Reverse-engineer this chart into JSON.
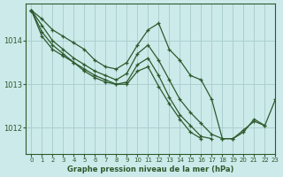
{
  "title": "Graphe pression niveau de la mer (hPa)",
  "background_color": "#cceaea",
  "grid_color": "#aacfcf",
  "line_color": "#2d5a2d",
  "marker_color": "#2d5a2d",
  "xlim": [
    -0.5,
    23
  ],
  "ylim": [
    1011.4,
    1014.85
  ],
  "yticks": [
    1012,
    1013,
    1014
  ],
  "xticks": [
    0,
    1,
    2,
    3,
    4,
    5,
    6,
    7,
    8,
    9,
    10,
    11,
    12,
    13,
    14,
    15,
    16,
    17,
    18,
    19,
    20,
    21,
    22,
    23
  ],
  "lines": [
    {
      "y": [
        1014.7,
        1014.5,
        1014.25,
        1014.1,
        1013.95,
        1013.8,
        1013.55,
        1013.4,
        1013.35,
        1013.5,
        1013.9,
        1014.25,
        1014.4,
        1013.8,
        1013.55,
        1013.2,
        1013.1,
        1012.65,
        1011.75,
        1011.75,
        1011.9,
        1012.2,
        1012.05,
        1012.65
      ],
      "has_markers": true
    },
    {
      "y": [
        1014.7,
        1014.35,
        1014.0,
        1013.8,
        1013.6,
        1013.45,
        1013.3,
        1013.2,
        1013.1,
        1013.25,
        1013.7,
        1013.9,
        1013.55,
        1013.1,
        1012.65,
        1012.35,
        1012.1,
        1011.85,
        1011.75,
        1011.75,
        1011.95,
        1012.15,
        1012.05,
        null
      ],
      "has_markers": true
    },
    {
      "y": [
        1014.7,
        1014.2,
        1013.9,
        1013.7,
        1013.5,
        1013.3,
        1013.15,
        1013.05,
        1013.0,
        1013.05,
        1013.45,
        1013.6,
        1013.2,
        1012.7,
        1012.3,
        1012.05,
        1011.8,
        1011.75,
        null,
        null,
        null,
        null,
        null,
        null
      ],
      "has_markers": true
    },
    {
      "y": [
        1014.7,
        1014.1,
        1013.8,
        1013.65,
        1013.5,
        1013.35,
        1013.2,
        1013.1,
        1013.0,
        1013.0,
        1013.3,
        1013.4,
        1012.95,
        1012.55,
        1012.2,
        1011.9,
        1011.75,
        null,
        null,
        null,
        null,
        null,
        null,
        null
      ],
      "has_markers": true
    }
  ]
}
